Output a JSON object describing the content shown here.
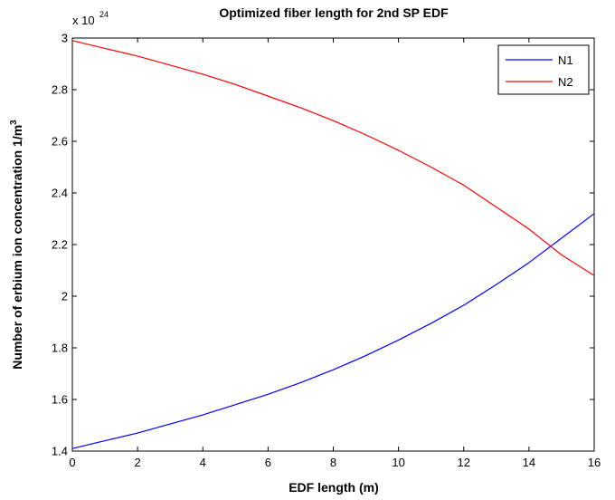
{
  "chart_data": {
    "type": "line",
    "title": "Optimized fiber length for 2nd SP EDF",
    "xlabel": "EDF length (m)",
    "ylabel_main": "Number of erbium ion concentration 1/m",
    "ylabel_sup": "3",
    "y_multiplier": {
      "base": "x 10",
      "exponent": "24"
    },
    "xlim": [
      0,
      16
    ],
    "ylim": [
      1.4,
      3.0
    ],
    "x_ticks": [
      0,
      2,
      4,
      6,
      8,
      10,
      12,
      14,
      16
    ],
    "x_tick_labels": [
      "0",
      "2",
      "4",
      "6",
      "8",
      "10",
      "12",
      "14",
      "16"
    ],
    "y_ticks": [
      1.4,
      1.6,
      1.8,
      2.0,
      2.2,
      2.4,
      2.6,
      2.8,
      3.0
    ],
    "y_tick_labels": [
      "1.4",
      "1.6",
      "1.8",
      "2",
      "2.2",
      "2.4",
      "2.6",
      "2.8",
      "3"
    ],
    "grid": false,
    "legend_position": "top-right",
    "x": [
      0,
      1,
      2,
      3,
      4,
      5,
      6,
      7,
      8,
      9,
      10,
      11,
      12,
      13,
      14,
      15,
      16
    ],
    "series": [
      {
        "name": "N1",
        "color": "#0000ff",
        "values": [
          1.41,
          1.44,
          1.47,
          1.505,
          1.54,
          1.58,
          1.62,
          1.665,
          1.715,
          1.77,
          1.83,
          1.895,
          1.965,
          2.045,
          2.13,
          2.225,
          2.32
        ]
      },
      {
        "name": "N2",
        "color": "#ff0000",
        "values": [
          2.99,
          2.96,
          2.93,
          2.895,
          2.86,
          2.82,
          2.775,
          2.73,
          2.68,
          2.625,
          2.565,
          2.5,
          2.43,
          2.345,
          2.26,
          2.16,
          2.08
        ]
      }
    ]
  }
}
